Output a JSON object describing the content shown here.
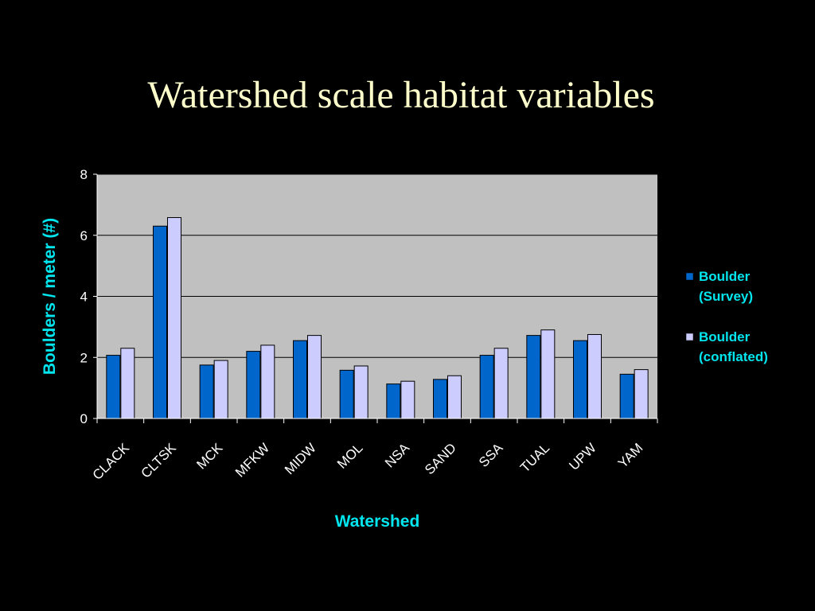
{
  "slide": {
    "title": "Watershed scale habitat variables"
  },
  "colors": {
    "background": "#000000",
    "title": "#ffffcc",
    "plot_area": "#c0c0c0",
    "axis_text": "#ffffff",
    "accent_text": "#00e5ee",
    "series_survey": "#0066cc",
    "series_conflated": "#ccccff"
  },
  "chart_data": {
    "type": "bar",
    "title": "",
    "xlabel": "Watershed",
    "ylabel": "Boulders / meter (#)",
    "ylim": [
      0,
      8
    ],
    "yticks": [
      0,
      2,
      4,
      6,
      8
    ],
    "grid": true,
    "legend_position": "right",
    "categories": [
      "CLACK",
      "CLTSK",
      "MCK",
      "MFKW",
      "MIDW",
      "MOL",
      "NSA",
      "SAND",
      "SSA",
      "TUAL",
      "UPW",
      "YAM"
    ],
    "series": [
      {
        "name": "Boulder (Survey)",
        "legend_lines": [
          "Boulder",
          "(Survey)"
        ],
        "color": "#0066cc",
        "values": [
          2.07,
          6.3,
          1.75,
          2.2,
          2.55,
          1.58,
          1.13,
          1.28,
          2.07,
          2.72,
          2.55,
          1.45
        ]
      },
      {
        "name": "Boulder (conflated)",
        "legend_lines": [
          "Boulder",
          "(conflated)"
        ],
        "color": "#ccccff",
        "values": [
          2.3,
          6.58,
          1.9,
          2.4,
          2.72,
          1.72,
          1.22,
          1.4,
          2.3,
          2.9,
          2.75,
          1.6
        ]
      }
    ]
  }
}
